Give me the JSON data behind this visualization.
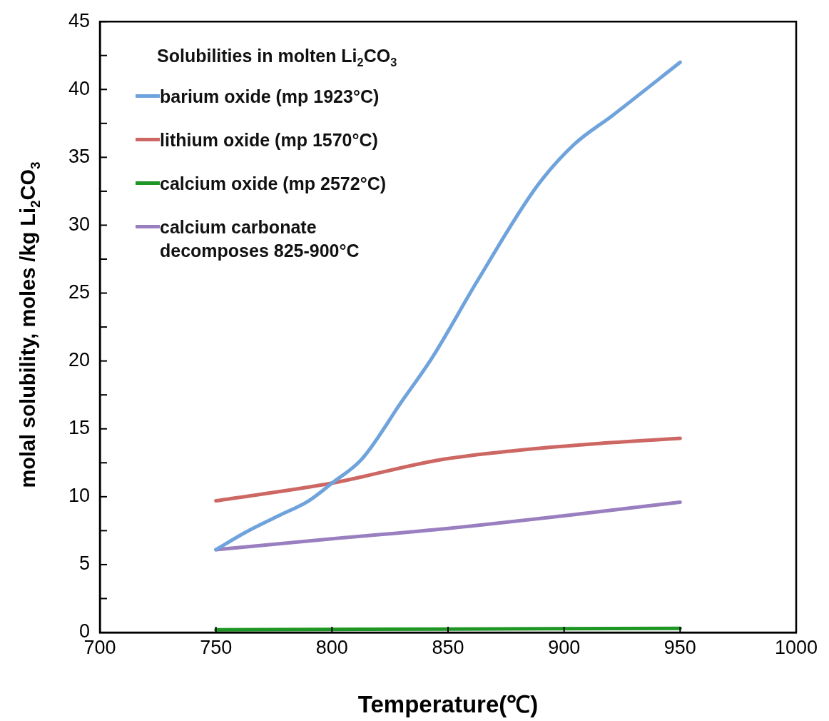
{
  "chart_data": {
    "type": "line",
    "xlabel": "Temperature(℃)",
    "ylabel": "molal solubility, moles /kg  Li$_{2}$CO$_{3}$",
    "legend_title": "Solubilities in molten Li$_{2}$CO$_{3}$",
    "legend": "top left",
    "grid": false,
    "marker": "none",
    "line_style": "solid",
    "xlim": [
      700,
      1000
    ],
    "xticks": [
      700,
      750,
      800,
      850,
      900,
      950,
      1000
    ],
    "ylim": [
      0,
      45
    ],
    "yticks": [
      0,
      {
        "value": 2.5,
        "label": null
      },
      5,
      {
        "value": 7.5,
        "label": null
      },
      10,
      {
        "value": 12.5,
        "label": null
      },
      15,
      {
        "value": 17.5,
        "label": null
      },
      20,
      {
        "value": 22.5,
        "label": null
      },
      25,
      {
        "value": 27.5,
        "label": null
      },
      30,
      {
        "value": 32.5,
        "label": null
      },
      35,
      {
        "value": 37.5,
        "label": null
      },
      40,
      {
        "value": 42.5,
        "label": null
      },
      45
    ],
    "series": [
      {
        "name": "barium oxide (mp 1923°C)",
        "color": "#6fa3dc",
        "x": [
          750,
          763,
          777,
          790,
          800,
          813,
          830,
          843,
          863,
          888,
          904,
          921,
          950
        ],
        "values": [
          6.1,
          7.4,
          8.6,
          9.7,
          11.0,
          12.8,
          17.0,
          20.2,
          26.0,
          32.8,
          35.9,
          38.1,
          42.0
        ]
      },
      {
        "name": "lithium oxide (mp 1570°C)",
        "color": "#cd6763",
        "x": [
          750,
          800,
          846,
          879,
          913,
          950
        ],
        "values": [
          9.7,
          11.0,
          12.7,
          13.4,
          13.9,
          14.3
        ]
      },
      {
        "name": "calcium oxide (mp 2572°C)",
        "color": "#1e9624",
        "x": [
          750,
          950
        ],
        "values": [
          0.2,
          0.3
        ]
      },
      {
        "name": "calcium carbonate\ndecomposes 825-900°C",
        "color": "#9a7fc0",
        "x": [
          750,
          800,
          846,
          900,
          950
        ],
        "values": [
          6.1,
          6.9,
          7.6,
          8.6,
          9.6
        ]
      }
    ]
  }
}
